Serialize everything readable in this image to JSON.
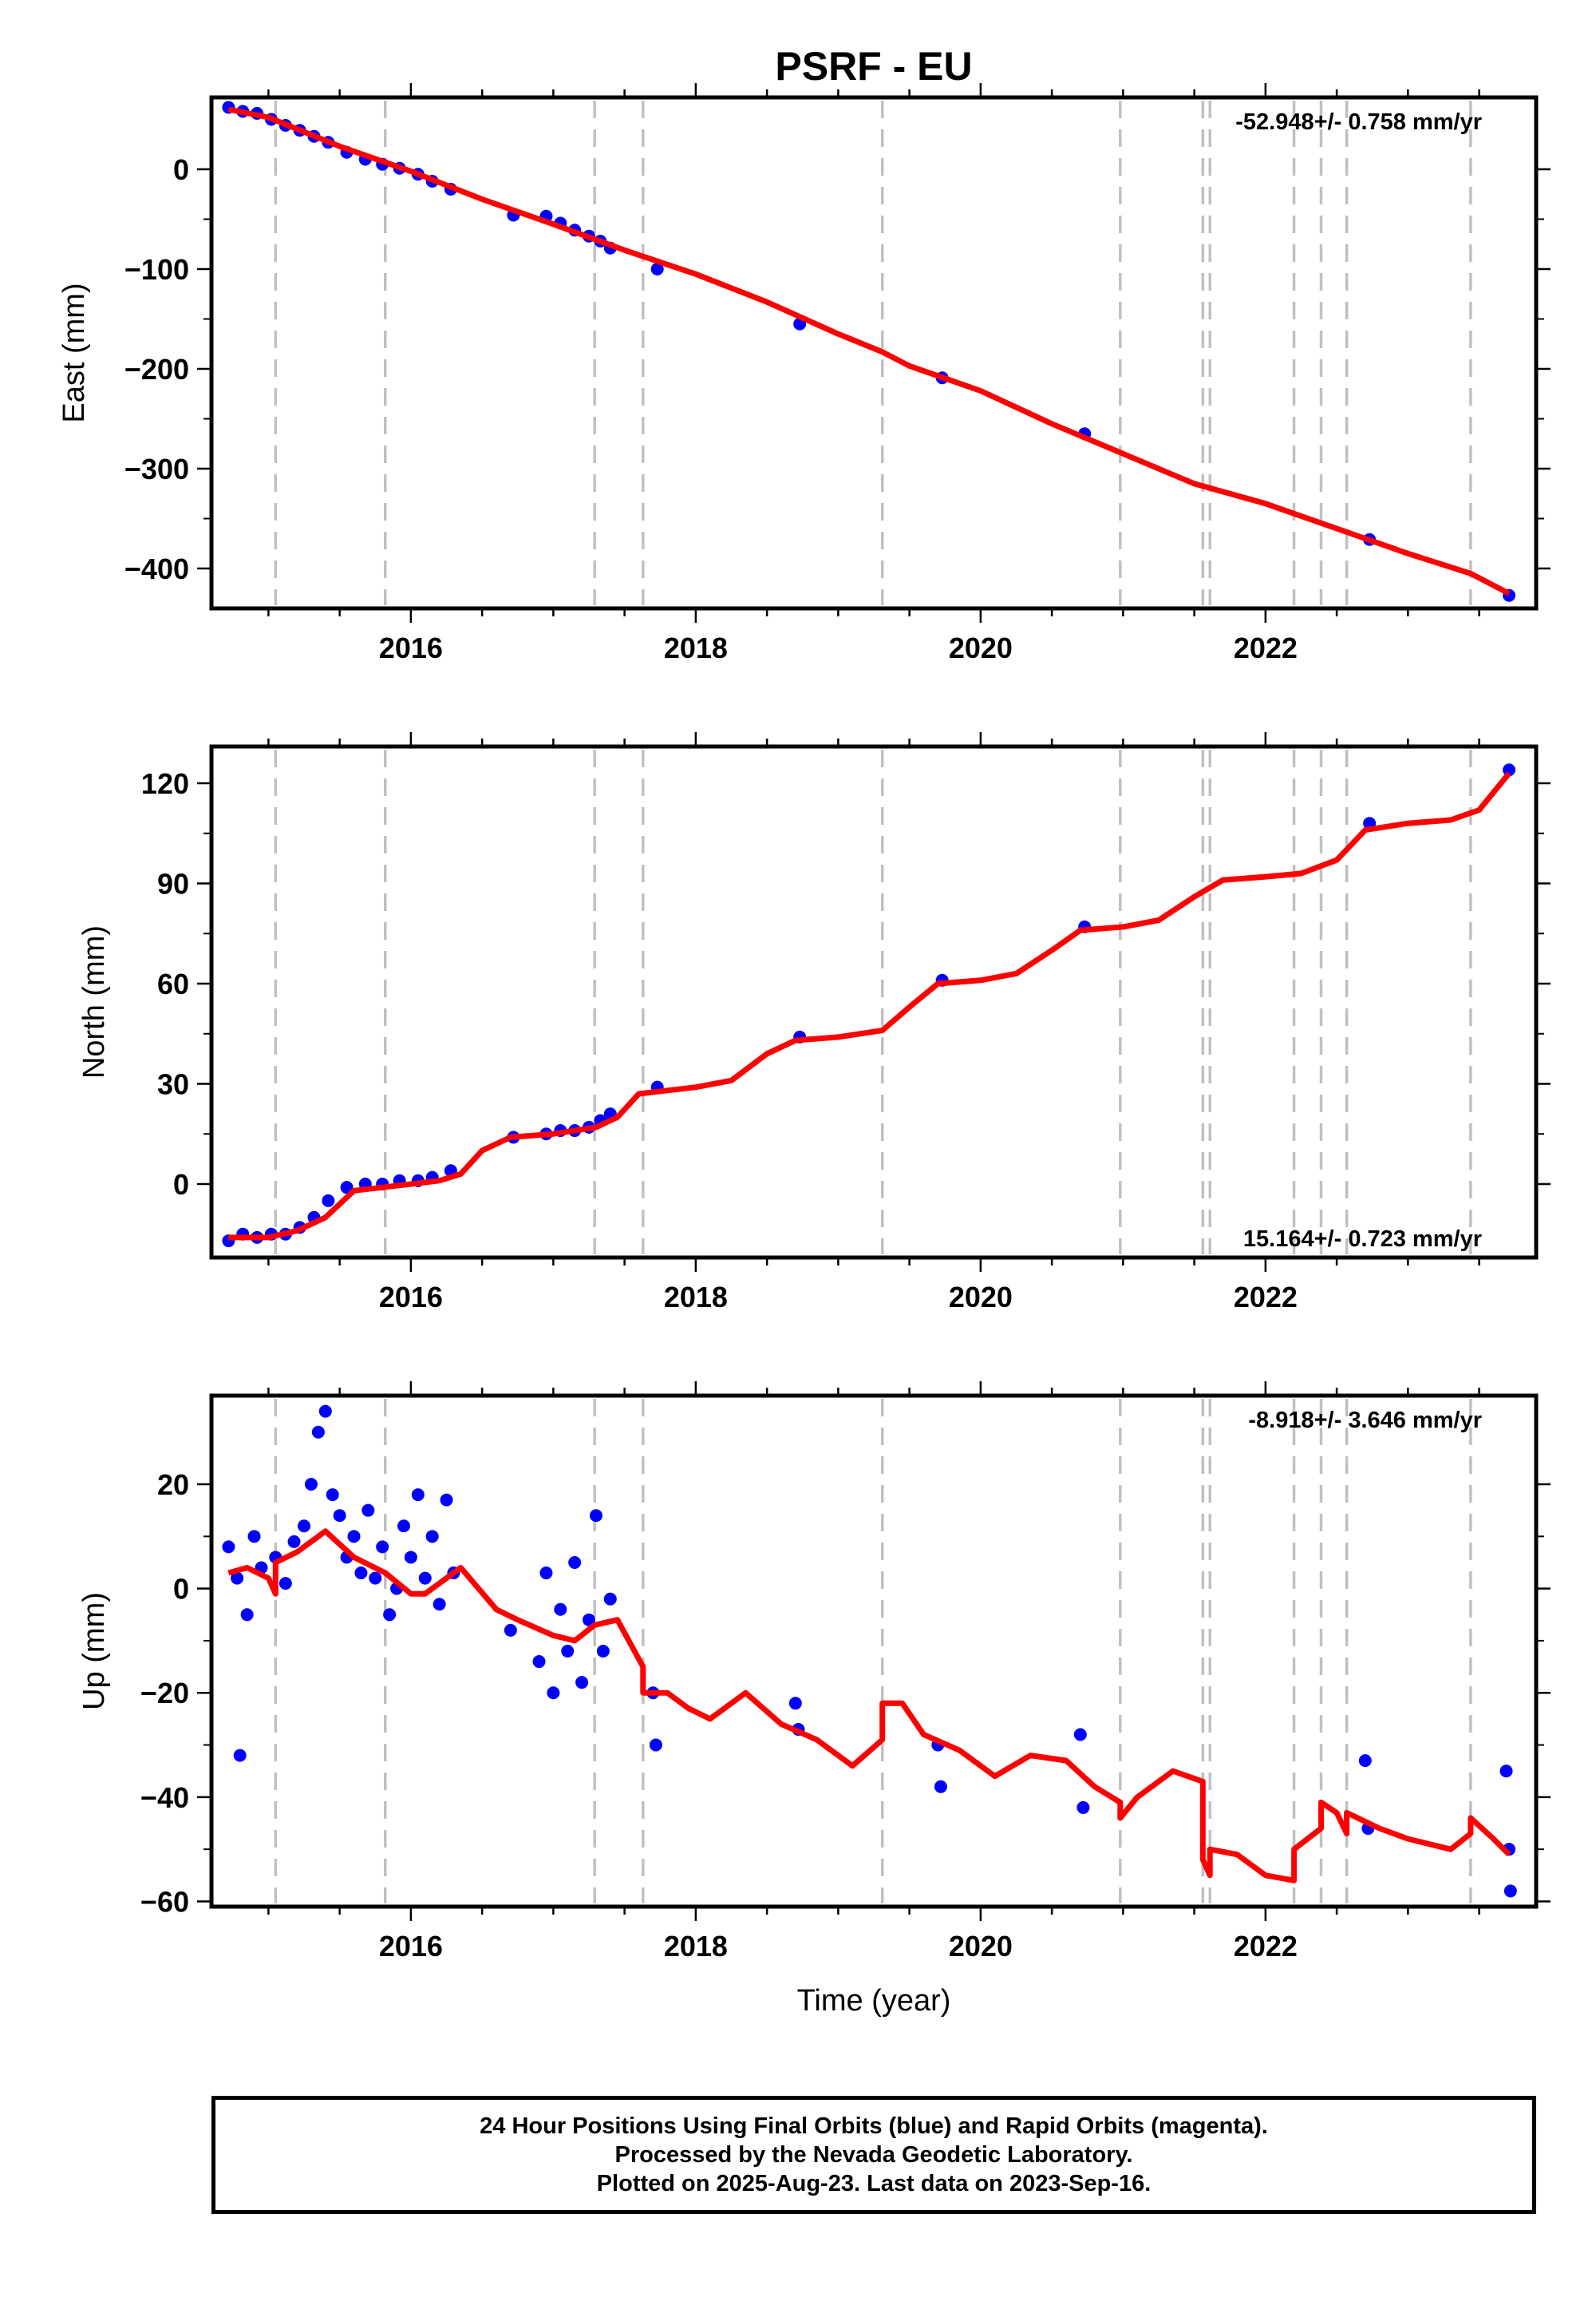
{
  "title": "PSRF - EU",
  "xlabel": "Time (year)",
  "footer": {
    "line1": "24 Hour Positions Using Final Orbits (blue) and Rapid Orbits (magenta).",
    "line2": "Processed by the Nevada Geodetic Laboratory.",
    "line3": "Plotted on 2025-Aug-23. Last data on 2023-Sep-16."
  },
  "colors": {
    "data": "#0000ff",
    "model": "#ff0000",
    "events": "#c0c0c0",
    "frame": "#000000"
  },
  "chart_data": [
    {
      "type": "scatter",
      "ylabel": "East (mm)",
      "rate_text": "-52.948+/- 0.758 mm/yr",
      "rate_position": "top-right",
      "xlim": [
        2014.6,
        2023.9
      ],
      "ylim": [
        -440,
        72
      ],
      "xticks": [
        2016,
        2018,
        2020,
        2022
      ],
      "yticks": [
        0,
        -100,
        -200,
        -300,
        -400
      ],
      "events": [
        2015.05,
        2015.82,
        2017.29,
        2017.63,
        2019.31,
        2020.98,
        2021.56,
        2021.61,
        2022.2,
        2022.39,
        2022.57,
        2023.44
      ],
      "series": [
        {
          "kind": "points",
          "x": [
            2014.72,
            2014.82,
            2014.92,
            2015.02,
            2015.12,
            2015.22,
            2015.32,
            2015.42,
            2015.55,
            2015.68,
            2015.8,
            2015.92,
            2016.05,
            2016.15,
            2016.28,
            2016.72,
            2016.95,
            2017.05,
            2017.15,
            2017.25,
            2017.33,
            2017.4,
            2017.73,
            2018.73,
            2019.73,
            2020.73,
            2022.73,
            2023.71
          ],
          "y": [
            62,
            58,
            56,
            50,
            44,
            39,
            33,
            27,
            17,
            10,
            5,
            1,
            -5,
            -12,
            -20,
            -46,
            -47,
            -54,
            -61,
            -67,
            -72,
            -79,
            -100,
            -155,
            -209,
            -265,
            -371,
            -427
          ]
        },
        {
          "kind": "line",
          "x": [
            2014.72,
            2015.0,
            2015.5,
            2016.0,
            2016.5,
            2017.0,
            2017.5,
            2018.0,
            2018.5,
            2019.0,
            2019.31,
            2019.5,
            2020.0,
            2020.5,
            2021.0,
            2021.5,
            2022.0,
            2022.5,
            2023.0,
            2023.44,
            2023.71
          ],
          "y": [
            60,
            52,
            23,
            -2,
            -30,
            -55,
            -81,
            -105,
            -133,
            -165,
            -183,
            -197,
            -222,
            -255,
            -285,
            -315,
            -335,
            -360,
            -385,
            -405,
            -425
          ]
        }
      ]
    },
    {
      "type": "scatter",
      "ylabel": "North (mm)",
      "rate_text": "15.164+/- 0.723 mm/yr",
      "rate_position": "bottom-right",
      "xlim": [
        2014.6,
        2023.9
      ],
      "ylim": [
        -22,
        131
      ],
      "xticks": [
        2016,
        2018,
        2020,
        2022
      ],
      "yticks": [
        0,
        30,
        60,
        90,
        120
      ],
      "events": [
        2015.05,
        2015.82,
        2017.29,
        2017.63,
        2019.31,
        2020.98,
        2021.56,
        2021.61,
        2022.2,
        2022.39,
        2022.57,
        2023.44
      ],
      "series": [
        {
          "kind": "points",
          "x": [
            2014.72,
            2014.82,
            2014.92,
            2015.02,
            2015.12,
            2015.22,
            2015.32,
            2015.42,
            2015.55,
            2015.68,
            2015.8,
            2015.92,
            2016.05,
            2016.15,
            2016.28,
            2016.72,
            2016.95,
            2017.05,
            2017.15,
            2017.25,
            2017.33,
            2017.4,
            2017.73,
            2018.73,
            2019.73,
            2020.73,
            2022.73,
            2023.71
          ],
          "y": [
            -17,
            -15,
            -16,
            -15,
            -15,
            -13,
            -10,
            -5,
            -1,
            0,
            0,
            1,
            1,
            2,
            4,
            14,
            15,
            16,
            16,
            17,
            19,
            21,
            29,
            44,
            61,
            77,
            108,
            124
          ]
        },
        {
          "kind": "line",
          "x": [
            2014.72,
            2015.0,
            2015.2,
            2015.4,
            2015.6,
            2015.8,
            2016.0,
            2016.2,
            2016.35,
            2016.5,
            2016.7,
            2017.0,
            2017.3,
            2017.45,
            2017.6,
            2017.8,
            2018.0,
            2018.25,
            2018.5,
            2018.7,
            2019.0,
            2019.31,
            2019.5,
            2019.7,
            2020.0,
            2020.25,
            2020.5,
            2020.7,
            2021.0,
            2021.25,
            2021.5,
            2021.7,
            2022.0,
            2022.25,
            2022.5,
            2022.7,
            2023.0,
            2023.3,
            2023.5,
            2023.71
          ],
          "y": [
            -16,
            -16,
            -14,
            -10,
            -2,
            -1,
            0,
            1,
            3,
            10,
            14,
            15,
            17,
            20,
            27,
            28,
            29,
            31,
            39,
            43,
            44,
            46,
            53,
            60,
            61,
            63,
            70,
            76,
            77,
            79,
            86,
            91,
            92,
            93,
            97,
            106,
            108,
            109,
            112,
            123
          ]
        }
      ]
    },
    {
      "type": "scatter",
      "ylabel": "Up (mm)",
      "rate_text": "-8.918+/- 3.646 mm/yr",
      "rate_position": "top-right",
      "xlim": [
        2014.6,
        2023.9
      ],
      "ylim": [
        -61,
        37
      ],
      "xticks": [
        2016,
        2018,
        2020,
        2022
      ],
      "yticks": [
        20,
        0,
        -20,
        -40,
        -60
      ],
      "events": [
        2015.05,
        2015.82,
        2017.29,
        2017.63,
        2019.31,
        2020.98,
        2021.56,
        2021.61,
        2022.2,
        2022.39,
        2022.57,
        2023.44
      ],
      "series": [
        {
          "kind": "points",
          "x": [
            2014.72,
            2014.78,
            2014.85,
            2014.9,
            2014.95,
            2014.8,
            2015.05,
            2015.12,
            2015.18,
            2015.25,
            2015.3,
            2015.35,
            2015.4,
            2015.45,
            2015.5,
            2015.55,
            2015.6,
            2015.65,
            2015.7,
            2015.75,
            2015.8,
            2015.85,
            2015.9,
            2015.95,
            2016.0,
            2016.05,
            2016.1,
            2016.15,
            2016.2,
            2016.25,
            2016.3,
            2016.7,
            2016.9,
            2016.95,
            2017.0,
            2017.05,
            2017.1,
            2017.15,
            2017.2,
            2017.25,
            2017.3,
            2017.35,
            2017.4,
            2017.7,
            2017.72,
            2018.7,
            2018.72,
            2019.7,
            2019.72,
            2020.7,
            2020.72,
            2022.7,
            2022.72,
            2023.69,
            2023.71,
            2023.72
          ],
          "y": [
            8,
            2,
            -5,
            10,
            4,
            -32,
            6,
            1,
            9,
            12,
            20,
            30,
            34,
            18,
            14,
            6,
            10,
            3,
            15,
            2,
            8,
            -5,
            0,
            12,
            6,
            18,
            2,
            10,
            -3,
            17,
            3,
            -8,
            -14,
            3,
            -20,
            -4,
            -12,
            5,
            -18,
            -6,
            14,
            -12,
            -2,
            -20,
            -30,
            -22,
            -27,
            -30,
            -38,
            -28,
            -42,
            -33,
            -46,
            -35,
            -50,
            -58
          ],
          "note": ""
        },
        {
          "kind": "line",
          "x": [
            2014.72,
            2014.85,
            2015.0,
            2015.05,
            2015.05,
            2015.2,
            2015.4,
            2015.6,
            2015.82,
            2016.0,
            2016.1,
            2016.35,
            2016.6,
            2016.75,
            2017.0,
            2017.15,
            2017.29,
            2017.45,
            2017.63,
            2017.63,
            2017.8,
            2017.95,
            2018.1,
            2018.35,
            2018.6,
            2018.85,
            2019.1,
            2019.31,
            2019.31,
            2019.45,
            2019.6,
            2019.85,
            2020.1,
            2020.35,
            2020.6,
            2020.8,
            2020.98,
            2020.98,
            2021.1,
            2021.35,
            2021.56,
            2021.56,
            2021.61,
            2021.61,
            2021.8,
            2022.0,
            2022.2,
            2022.2,
            2022.39,
            2022.39,
            2022.5,
            2022.57,
            2022.57,
            2022.8,
            2023.0,
            2023.3,
            2023.44,
            2023.44,
            2023.6,
            2023.71
          ],
          "y": [
            3,
            4,
            2,
            -1,
            5,
            7,
            11,
            6,
            3,
            -1,
            -1,
            4,
            -4,
            -6,
            -9,
            -10,
            -7,
            -6,
            -15,
            -20,
            -20,
            -23,
            -25,
            -20,
            -26,
            -29,
            -34,
            -29,
            -22,
            -22,
            -28,
            -31,
            -36,
            -32,
            -33,
            -38,
            -41,
            -44,
            -40,
            -35,
            -37,
            -52,
            -55,
            -50,
            -51,
            -55,
            -56,
            -50,
            -46,
            -41,
            -43,
            -47,
            -43,
            -46,
            -48,
            -50,
            -47,
            -44,
            -48,
            -51
          ]
        }
      ]
    }
  ]
}
